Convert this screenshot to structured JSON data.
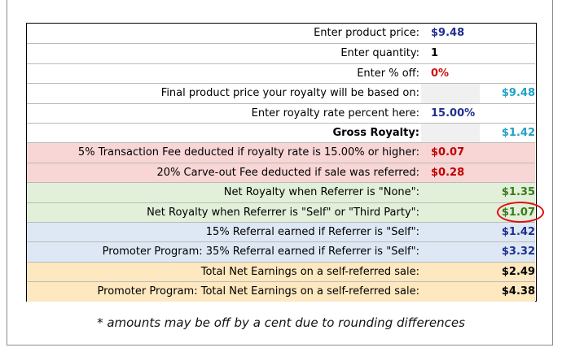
{
  "rows": [
    {
      "label": "Enter product price:",
      "value": "$9.48"
    },
    {
      "label": "Enter quantity:",
      "value": "1"
    },
    {
      "label": "Enter % off:",
      "value": "0%"
    },
    {
      "label": "Final product price your royalty will be based on:",
      "value": "$9.48"
    },
    {
      "label": "Enter royalty rate percent here:",
      "value": "15.00%"
    },
    {
      "label": "Gross Royalty:",
      "value": "$1.42"
    },
    {
      "label": "5% Transaction Fee deducted if royalty rate is 15.00% or higher:",
      "value": "$0.07"
    },
    {
      "label": "20% Carve-out Fee deducted if sale was referred:",
      "value": "$0.28"
    },
    {
      "label": "Net Royalty when Referrer is \"None\":",
      "value": "$1.35"
    },
    {
      "label": "Net Royalty when Referrer is \"Self\" or \"Third Party\":",
      "value": "$1.07"
    },
    {
      "label": "15% Referral earned if Referrer is \"Self\":",
      "value": "$1.42"
    },
    {
      "label": "Promoter Program: 35% Referral earned if Referrer is \"Self\":",
      "value": "$3.32"
    },
    {
      "label": "Total Net Earnings on a self-referred sale:",
      "value": "$2.49"
    },
    {
      "label": "Promoter Program: Total Net Earnings on a self-referred sale:",
      "value": "$4.38"
    }
  ],
  "footnote": "* amounts may be off by a cent due to rounding differences"
}
